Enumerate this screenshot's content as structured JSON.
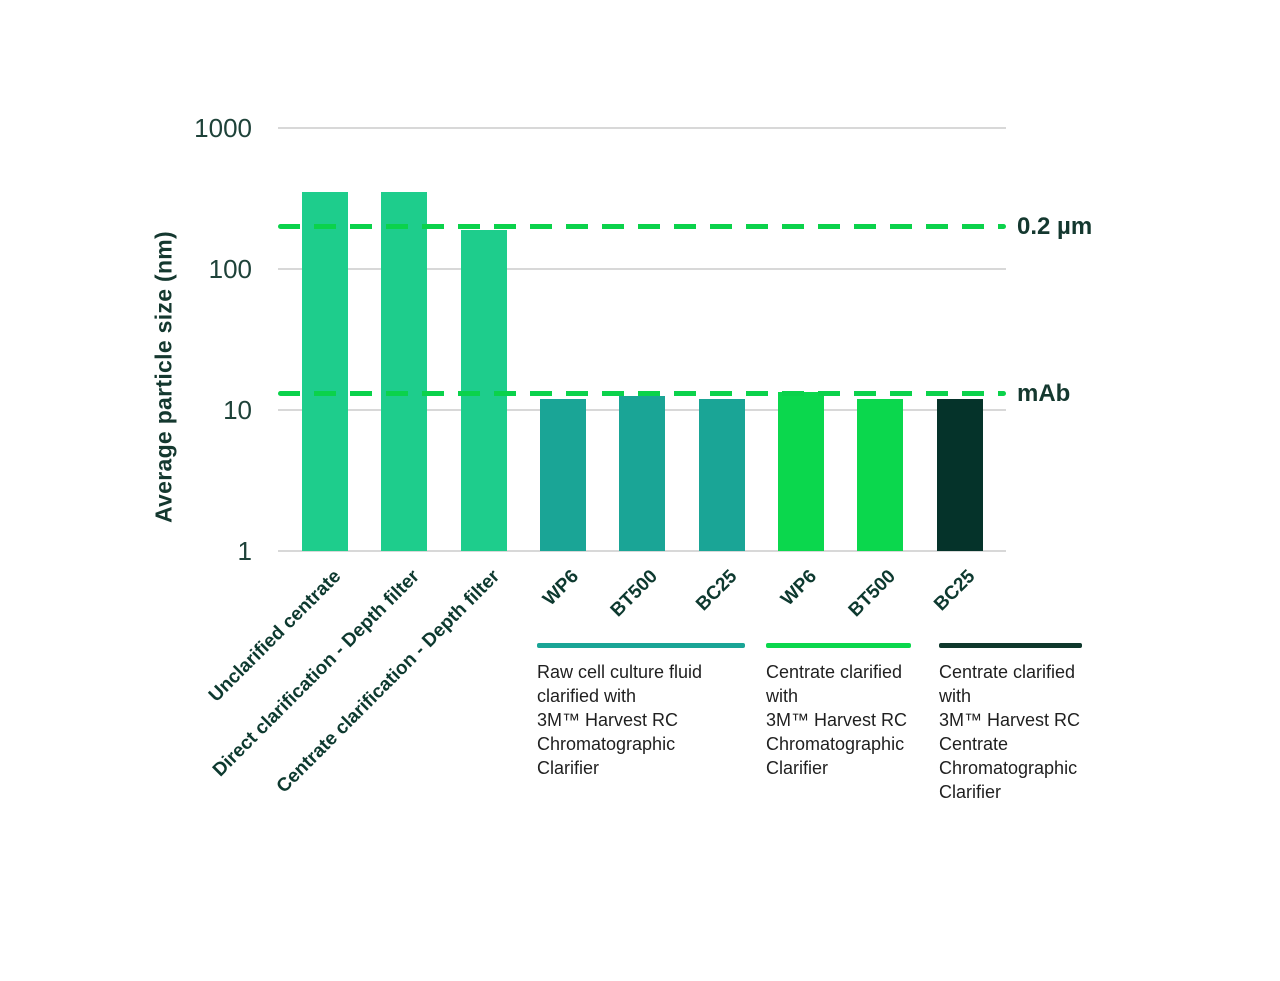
{
  "chart_data": {
    "type": "bar",
    "title": "",
    "xlabel": "",
    "ylabel": "Average particle size (nm)",
    "yscale": "log",
    "ylim": [
      1,
      1000
    ],
    "yticks": [
      "1000",
      "100",
      "10",
      "1"
    ],
    "grid": true,
    "categories": [
      "Unclarified centrate",
      "Direct clarification - Depth filter",
      "Centrate clarification - Depth filter",
      "WP6",
      "BT500",
      "BC25",
      "WP6",
      "BT500",
      "BC25"
    ],
    "values": [
      350,
      350,
      190,
      12,
      12.5,
      12,
      13.5,
      12,
      12
    ],
    "bar_colors": [
      "#1ecd8c",
      "#1ecd8c",
      "#1ecd8c",
      "#1aa596",
      "#1aa596",
      "#1aa596",
      "#0bd74d",
      "#0bd74d",
      "#05332a"
    ],
    "reference_lines": [
      {
        "label": "0.2 µm",
        "value": 200
      },
      {
        "label": "mAb",
        "value": 13
      }
    ],
    "reference_line_color": "#0bd24b",
    "legend_position": "bottom"
  },
  "legend": {
    "groups": [
      {
        "color": "#1aa596",
        "text": "Raw cell culture fluid\nclarified with\n3M™ Harvest RC\nChromatographic\nClarifier"
      },
      {
        "color": "#0bd74d",
        "text": "Centrate clarified\nwith\n3M™ Harvest RC\nChromatographic\nClarifier"
      },
      {
        "color": "#0f382c",
        "text": "Centrate clarified\nwith\n3M™ Harvest RC\nCentrate\nChromatographic\nClarifier"
      }
    ]
  },
  "colors": {
    "gridline": "#d8d8d8",
    "axis_text": "#1e4239",
    "category_text": "#0d392f",
    "legend_text": "#1f1f1f",
    "background": "#ffffff"
  }
}
